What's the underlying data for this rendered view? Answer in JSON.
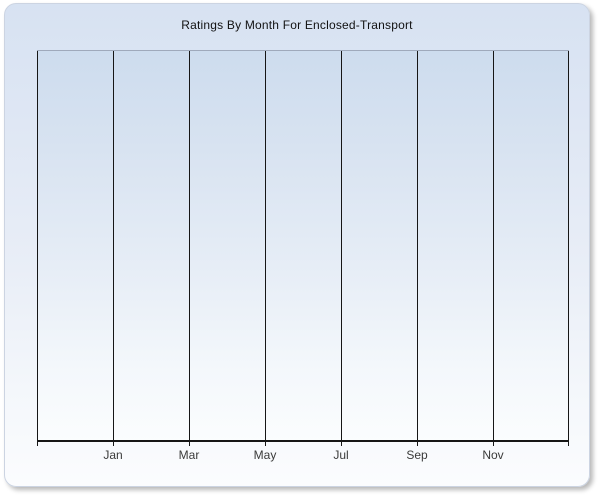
{
  "panel": {
    "title": "Ratings By Month For Enclosed-Transport"
  },
  "colors": {
    "panel_gradient_top": "#d7e2f2",
    "panel_gradient_bottom": "#fbfcfe",
    "plot_gradient_top": "#cddcee",
    "plot_gradient_bottom": "#fbfdfe",
    "panel_border": "#ccd4e2",
    "plot_top_border": "#9fa9bb",
    "gridline": "#161616",
    "axis": "#161616",
    "title_text": "#111111",
    "tick_label_text": "#3a3a3a"
  },
  "chart_data": {
    "type": "line",
    "title": "Ratings By Month For Enclosed-Transport",
    "x_tick_labels": [
      "Jan",
      "Mar",
      "May",
      "Jul",
      "Sep",
      "Nov"
    ],
    "series": [],
    "empty": true,
    "xlabel": "",
    "ylabel": "",
    "y_axis_tick_labels": "none visible",
    "grid": "vertical gridlines only, 8 lines at 2-month intervals",
    "legend": "none"
  }
}
